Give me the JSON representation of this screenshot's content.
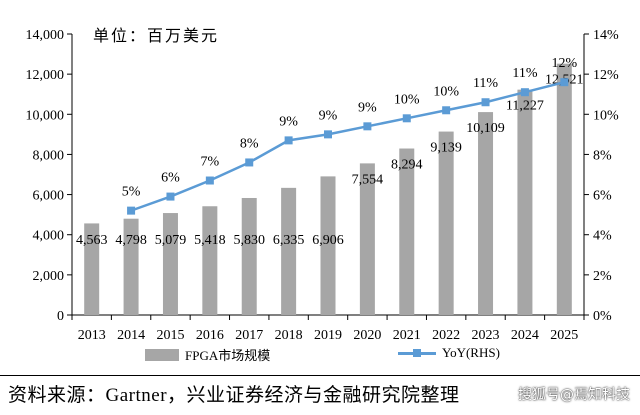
{
  "unit_label": "单位：百万美元",
  "source": "资料来源：Gartner，兴业证券经济与金融研究院整理",
  "watermark": "搜狐号@焉知科技",
  "legend": {
    "bar": "FPGA市场规模",
    "line": "YoY(RHS)"
  },
  "colors": {
    "bar": "#a6a6a6",
    "line": "#5b9bd5"
  },
  "icons": {
    "bar_legend": "gray-square",
    "line_legend": "blue-line-square-marker"
  },
  "chart_data": {
    "type": "bar",
    "categories": [
      "2013",
      "2014",
      "2015",
      "2016",
      "2017",
      "2018",
      "2019",
      "2020",
      "2021",
      "2022",
      "2023",
      "2024",
      "2025"
    ],
    "series": [
      {
        "name": "FPGA市场规模",
        "type": "bar",
        "axis": "left",
        "values": [
          4563,
          4798,
          5079,
          5418,
          5830,
          6335,
          6906,
          7554,
          8294,
          9139,
          10109,
          11227,
          12521
        ],
        "labels": [
          "4,563",
          "4,798",
          "5,079",
          "5,418",
          "5,830",
          "6,335",
          "6,906",
          "7,554",
          "8,294",
          "9,139",
          "10,109",
          "11,227",
          "12,521"
        ]
      },
      {
        "name": "YoY(RHS)",
        "type": "line",
        "axis": "right",
        "values": [
          null,
          5.2,
          5.9,
          6.7,
          7.6,
          8.7,
          9.0,
          9.4,
          9.8,
          10.2,
          10.6,
          11.1,
          11.6
        ],
        "labels": [
          "",
          "5%",
          "6%",
          "7%",
          "8%",
          "9%",
          "9%",
          "9%",
          "10%",
          "10%",
          "11%",
          "11%",
          "12%"
        ]
      }
    ],
    "y_left": {
      "range": [
        0,
        14000
      ],
      "ticks": [
        "0",
        "2,000",
        "4,000",
        "6,000",
        "8,000",
        "10,000",
        "12,000",
        "14,000"
      ]
    },
    "y_right": {
      "range": [
        0,
        14
      ],
      "ticks": [
        "0%",
        "2%",
        "4%",
        "6%",
        "8%",
        "10%",
        "12%",
        "14%"
      ]
    },
    "legend_position": "bottom",
    "grid": false
  }
}
